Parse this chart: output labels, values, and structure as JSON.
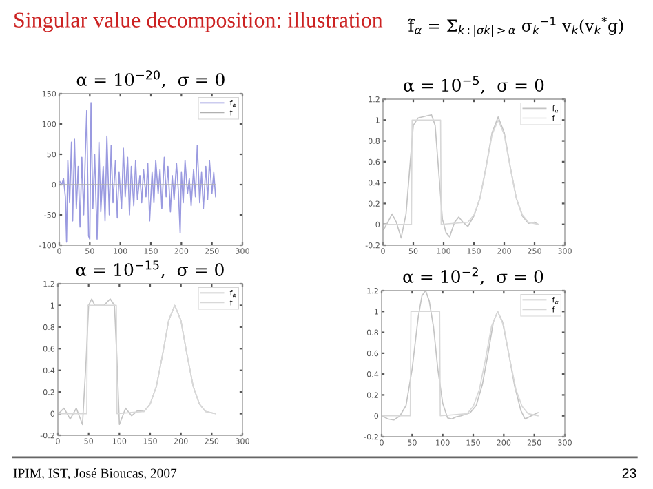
{
  "chart_data": [
    {
      "type": "line",
      "title": "α = 10$^{−20}$,  σ = 0",
      "annotations": [
        "Singular value decomposition: illustration",
        "f̂$_{α}$ = Σ$_{k:|σk|>α}$ σ$_{k}$$^{−1}$ v$_{k}$(v$_{k}$$^{*}$g)",
        "IPIM, IST, José Bioucas, 2007",
        "23"
      ],
      "xlim": [
        0,
        300
      ],
      "ylim": [
        -100,
        150
      ],
      "xticks": [
        0,
        50,
        100,
        150,
        200,
        250,
        300
      ],
      "yticks": [
        -100,
        -50,
        0,
        50,
        100,
        150
      ],
      "legend": "top right",
      "series": [
        {
          "name": "f$_{α}$",
          "color": "#9a9ae0",
          "x": [
            1,
            4,
            7,
            10,
            12,
            14,
            17,
            20,
            22,
            25,
            28,
            31,
            34,
            37,
            40,
            43,
            45,
            48,
            50,
            52,
            55,
            58,
            62,
            65,
            68,
            72,
            75,
            78,
            82,
            85,
            88,
            92,
            95,
            98,
            102,
            105,
            108,
            112,
            115,
            118,
            122,
            125,
            128,
            132,
            135,
            138,
            142,
            145,
            148,
            152,
            155,
            158,
            162,
            165,
            168,
            172,
            175,
            178,
            182,
            185,
            188,
            192,
            195,
            198,
            200,
            203,
            206,
            210,
            213,
            216,
            220,
            223,
            226,
            230,
            233,
            236,
            240,
            243,
            246,
            250,
            253,
            256
          ],
          "values": [
            5,
            0,
            10,
            -20,
            -95,
            40,
            -30,
            70,
            -60,
            75,
            -40,
            30,
            -70,
            45,
            -50,
            60,
            122,
            -85,
            -90,
            135,
            -40,
            50,
            -90,
            70,
            -45,
            30,
            -60,
            80,
            -50,
            65,
            -30,
            40,
            -55,
            20,
            -40,
            60,
            -20,
            45,
            -50,
            30,
            -35,
            40,
            -25,
            15,
            -30,
            25,
            -20,
            35,
            -60,
            20,
            -30,
            40,
            -15,
            25,
            -40,
            45,
            -20,
            30,
            -45,
            15,
            -25,
            35,
            -10,
            -80,
            20,
            -30,
            40,
            -15,
            10,
            -35,
            25,
            -20,
            65,
            -30,
            20,
            -40,
            30,
            -25,
            40,
            -15,
            20,
            -20
          ]
        },
        {
          "name": "f",
          "color": "#b0b0b0",
          "x": [
            1,
            256
          ],
          "values": [
            0,
            0
          ]
        }
      ]
    },
    {
      "type": "line",
      "title": "α = 10$^{−5}$,  σ = 0",
      "xlim": [
        0,
        300
      ],
      "ylim": [
        -0.2,
        1.2
      ],
      "xticks": [
        0,
        50,
        100,
        150,
        200,
        250,
        300
      ],
      "yticks": [
        -0.2,
        0,
        0.2,
        0.4,
        0.6,
        0.8,
        1,
        1.2
      ],
      "legend": "top right",
      "series": [
        {
          "name": "f$_{α}$",
          "color": "#c4c4c4",
          "x": [
            1,
            8,
            15,
            22,
            30,
            38,
            45,
            50,
            58,
            65,
            72,
            80,
            86,
            92,
            98,
            104,
            110,
            118,
            125,
            132,
            140,
            150,
            160,
            170,
            180,
            190,
            200,
            210,
            220,
            230,
            240,
            250,
            256
          ],
          "values": [
            -0.05,
            0.02,
            0.1,
            0.02,
            -0.13,
            0.1,
            0.6,
            0.95,
            1.02,
            1.03,
            1.04,
            1.05,
            0.95,
            0.5,
            0.05,
            -0.08,
            -0.12,
            0.02,
            0.07,
            0.02,
            -0.02,
            0.08,
            0.25,
            0.55,
            0.88,
            1.03,
            0.88,
            0.55,
            0.25,
            0.08,
            0.01,
            0.02,
            0.0
          ]
        },
        {
          "name": "f",
          "color": "#d8d8d8",
          "x": [
            1,
            47,
            48,
            95,
            96,
            140,
            150,
            160,
            170,
            180,
            190,
            200,
            210,
            220,
            230,
            240,
            256
          ],
          "values": [
            0,
            0,
            1,
            1,
            0,
            0.02,
            0.09,
            0.25,
            0.54,
            0.86,
            1,
            0.86,
            0.54,
            0.25,
            0.09,
            0.02,
            0
          ]
        }
      ]
    },
    {
      "type": "line",
      "title": "α = 10$^{−15}$,  σ = 0",
      "xlim": [
        0,
        300
      ],
      "ylim": [
        -0.2,
        1.2
      ],
      "xticks": [
        0,
        50,
        100,
        150,
        200,
        250,
        300
      ],
      "yticks": [
        -0.2,
        0,
        0.2,
        0.4,
        0.6,
        0.8,
        1,
        1.2
      ],
      "legend": "top right",
      "series": [
        {
          "name": "f$_{α}$",
          "color": "#c4c4c4",
          "x": [
            1,
            10,
            20,
            30,
            40,
            46,
            50,
            55,
            60,
            65,
            75,
            85,
            92,
            96,
            100,
            110,
            120,
            130,
            140,
            150,
            160,
            170,
            180,
            190,
            200,
            210,
            220,
            230,
            240,
            256
          ],
          "values": [
            0,
            0.05,
            -0.05,
            0.05,
            -0.1,
            0.5,
            1,
            1.06,
            1,
            1,
            1,
            1.06,
            1,
            0.5,
            -0.1,
            0.05,
            -0.02,
            0.03,
            0.02,
            0.09,
            0.25,
            0.54,
            0.86,
            1,
            0.86,
            0.54,
            0.25,
            0.09,
            0.02,
            0
          ]
        },
        {
          "name": "f",
          "color": "#d8d8d8",
          "x": [
            1,
            47,
            48,
            95,
            96,
            140,
            150,
            160,
            170,
            180,
            190,
            200,
            210,
            220,
            230,
            240,
            256
          ],
          "values": [
            0,
            0,
            1,
            1,
            0,
            0.02,
            0.09,
            0.25,
            0.54,
            0.86,
            1,
            0.86,
            0.54,
            0.25,
            0.09,
            0.02,
            0
          ]
        }
      ]
    },
    {
      "type": "line",
      "title": "α = 10$^{−2}$,  σ = 0",
      "xlim": [
        0,
        300
      ],
      "ylim": [
        -0.2,
        1.2
      ],
      "xticks": [
        0,
        50,
        100,
        150,
        200,
        250,
        300
      ],
      "yticks": [
        -0.2,
        0,
        0.2,
        0.4,
        0.6,
        0.8,
        1,
        1.2
      ],
      "legend": "top right",
      "series": [
        {
          "name": "f$_{α}$",
          "color": "#c4c4c4",
          "x": [
            1,
            10,
            20,
            30,
            40,
            50,
            60,
            66,
            72,
            78,
            85,
            92,
            100,
            108,
            115,
            122,
            130,
            140,
            145,
            155,
            165,
            175,
            183,
            190,
            198,
            208,
            218,
            228,
            235,
            245,
            256
          ],
          "values": [
            0,
            -0.03,
            -0.04,
            0,
            0.1,
            0.45,
            0.95,
            1.15,
            1.2,
            1.1,
            0.85,
            0.45,
            0.12,
            -0.02,
            -0.03,
            -0.01,
            0,
            0.02,
            0.03,
            0.1,
            0.3,
            0.62,
            0.9,
            1,
            0.9,
            0.6,
            0.28,
            0.05,
            -0.03,
            0,
            0.03
          ]
        },
        {
          "name": "f",
          "color": "#d8d8d8",
          "x": [
            1,
            47,
            48,
            95,
            96,
            140,
            150,
            160,
            170,
            180,
            190,
            200,
            210,
            220,
            230,
            240,
            256
          ],
          "values": [
            0,
            0,
            1,
            1,
            0,
            0.02,
            0.09,
            0.25,
            0.54,
            0.86,
            1,
            0.86,
            0.54,
            0.25,
            0.09,
            0.02,
            0
          ]
        }
      ]
    }
  ]
}
